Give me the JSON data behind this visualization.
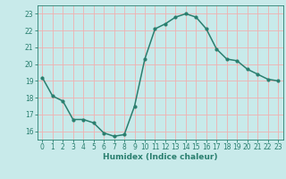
{
  "x": [
    0,
    1,
    2,
    3,
    4,
    5,
    6,
    7,
    8,
    9,
    10,
    11,
    12,
    13,
    14,
    15,
    16,
    17,
    18,
    19,
    20,
    21,
    22,
    23
  ],
  "y": [
    19.2,
    18.1,
    17.8,
    16.7,
    16.7,
    16.5,
    15.9,
    15.7,
    15.8,
    17.5,
    20.3,
    22.1,
    22.4,
    22.8,
    23.0,
    22.8,
    22.1,
    20.9,
    20.3,
    20.2,
    19.7,
    19.4,
    19.1,
    19.0
  ],
  "line_color": "#2a7f6f",
  "marker": "o",
  "marker_size": 2.0,
  "bg_color": "#c8eaea",
  "grid_color": "#f0b0b0",
  "xlabel": "Humidex (Indice chaleur)",
  "xlim": [
    -0.5,
    23.5
  ],
  "ylim": [
    15.5,
    23.5
  ],
  "yticks": [
    16,
    17,
    18,
    19,
    20,
    21,
    22,
    23
  ],
  "xticks": [
    0,
    1,
    2,
    3,
    4,
    5,
    6,
    7,
    8,
    9,
    10,
    11,
    12,
    13,
    14,
    15,
    16,
    17,
    18,
    19,
    20,
    21,
    22,
    23
  ],
  "tick_color": "#2a7f6f",
  "label_color": "#2a7f6f",
  "xlabel_fontsize": 6.5,
  "tick_fontsize": 5.5,
  "line_width": 1.1
}
